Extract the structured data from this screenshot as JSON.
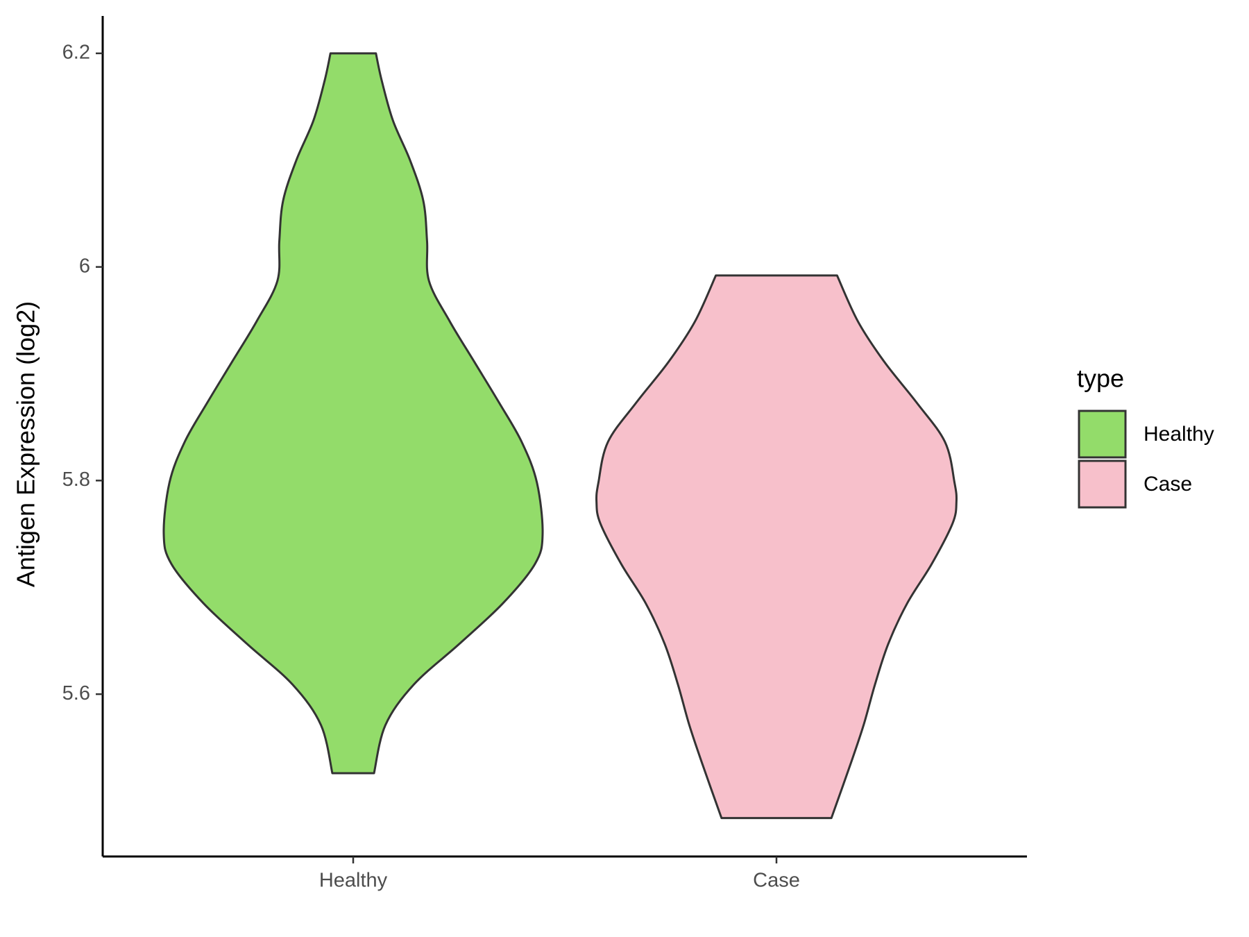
{
  "chart_data": {
    "type": "violin",
    "y_label": "Antigen Expression (log2)",
    "categories": [
      "Healthy",
      "Case"
    ],
    "legend_title": "type",
    "legend": "right",
    "ylim": [
      5.448,
      6.235
    ],
    "yticks": [
      5.6,
      5.8,
      6.0,
      6.2
    ],
    "series": [
      {
        "name": "Healthy",
        "color": "#93dc6a",
        "y": [
          6.2,
          6.175,
          6.137,
          6.1,
          6.062,
          6.024,
          5.987,
          5.949,
          5.911,
          5.873,
          5.836,
          5.798,
          5.75,
          5.722,
          5.685,
          5.647,
          5.609,
          5.571,
          5.526
        ],
        "density": [
          0.12,
          0.15,
          0.21,
          0.3,
          0.37,
          0.39,
          0.4,
          0.51,
          0.64,
          0.77,
          0.89,
          0.97,
          1.0,
          0.96,
          0.79,
          0.56,
          0.32,
          0.17,
          0.11
        ]
      },
      {
        "name": "Case",
        "color": "#f7c0cb",
        "y": [
          5.992,
          5.949,
          5.911,
          5.873,
          5.836,
          5.798,
          5.78,
          5.76,
          5.722,
          5.685,
          5.647,
          5.609,
          5.571,
          5.534,
          5.484
        ],
        "density": [
          0.32,
          0.43,
          0.57,
          0.74,
          0.89,
          0.94,
          0.95,
          0.93,
          0.82,
          0.69,
          0.59,
          0.52,
          0.46,
          0.39,
          0.29
        ]
      }
    ]
  }
}
